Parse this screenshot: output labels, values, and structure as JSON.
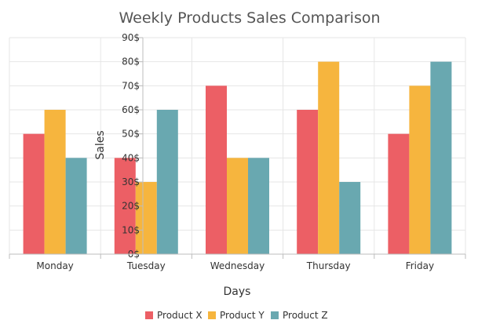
{
  "chart_data": {
    "type": "bar",
    "title": "Weekly Products Sales Comparison",
    "xlabel": "Days",
    "ylabel": "Sales",
    "categories": [
      "Monday",
      "Tuesday",
      "Wednesday",
      "Thursday",
      "Friday"
    ],
    "ylim": [
      0,
      90
    ],
    "yticks": [
      0,
      10,
      20,
      30,
      40,
      50,
      60,
      70,
      80,
      90
    ],
    "ytick_suffix": "$",
    "grid": true,
    "legend_position": "bottom",
    "series": [
      {
        "name": "Product X",
        "color": "#ec5f65",
        "values": [
          50,
          40,
          70,
          60,
          50
        ]
      },
      {
        "name": "Product Y",
        "color": "#f6b53e",
        "values": [
          60,
          30,
          40,
          80,
          70
        ]
      },
      {
        "name": "Product Z",
        "color": "#69a8b0",
        "values": [
          40,
          60,
          40,
          30,
          80
        ]
      }
    ]
  }
}
